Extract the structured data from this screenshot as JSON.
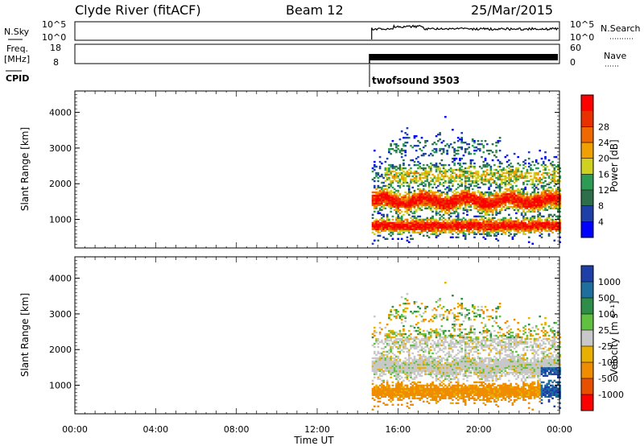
{
  "header": {
    "station": "Clyde River (fitACF)",
    "beam": "Beam 12",
    "date": "25/Mar/2015"
  },
  "top_panels": {
    "nsky_label": "N.Sky",
    "nsky_ticks": [
      "10^5",
      "10^0"
    ],
    "nsearch_label": "N.Search",
    "nsearch_ticks": [
      "10^5",
      "10^0"
    ],
    "freq_label_line1": "Freq.",
    "freq_label_line2": "[MHz]",
    "freq_ticks": [
      "18",
      "8"
    ],
    "nave_label": "Nave",
    "nave_ticks": [
      "60",
      "0"
    ],
    "cpid_label": "CPID",
    "cpid_text": "twofsound 3503"
  },
  "colors": {
    "power": [
      "#0000ff",
      "#1f3fa8",
      "#2e6e4a",
      "#2e9b55",
      "#cfd020",
      "#f0a000",
      "#f06800",
      "#e83000",
      "#ff0000"
    ],
    "velocity": [
      "#1f3fa8",
      "#1e6f9e",
      "#2f8d4a",
      "#60c040",
      "#c8c8c8",
      "#e8b000",
      "#f08c00",
      "#e85000",
      "#ff0000"
    ]
  },
  "chart_data": [
    {
      "type": "heatmap",
      "name": "power",
      "xlabel": "Time UT",
      "ylabel": "Slant Range [km]",
      "xlim": [
        0,
        24
      ],
      "ylim": [
        200,
        4600
      ],
      "x_ticks": [
        "00:00",
        "04:00",
        "08:00",
        "12:00",
        "16:00",
        "20:00",
        "00:00"
      ],
      "y_ticks": [
        "1000",
        "2000",
        "3000",
        "4000"
      ],
      "colorbar_label": "Power [dB]",
      "colorbar_ticks": [
        "4",
        "8",
        "12",
        "16",
        "20",
        "24",
        "28"
      ],
      "data_start_hour": 14.7
    },
    {
      "type": "heatmap",
      "name": "velocity",
      "xlabel": "Time UT",
      "ylabel": "Slant Range [km]",
      "xlim": [
        0,
        24
      ],
      "ylim": [
        200,
        4600
      ],
      "x_ticks": [
        "00:00",
        "04:00",
        "08:00",
        "12:00",
        "16:00",
        "20:00",
        "00:00"
      ],
      "y_ticks": [
        "1000",
        "2000",
        "3000",
        "4000"
      ],
      "colorbar_label": "Velocity [m s⁻¹]",
      "colorbar_ticks": [
        "1000",
        "500",
        "100",
        "25",
        "-25",
        "-100",
        "-500",
        "-1000"
      ],
      "data_start_hour": 14.7
    }
  ]
}
